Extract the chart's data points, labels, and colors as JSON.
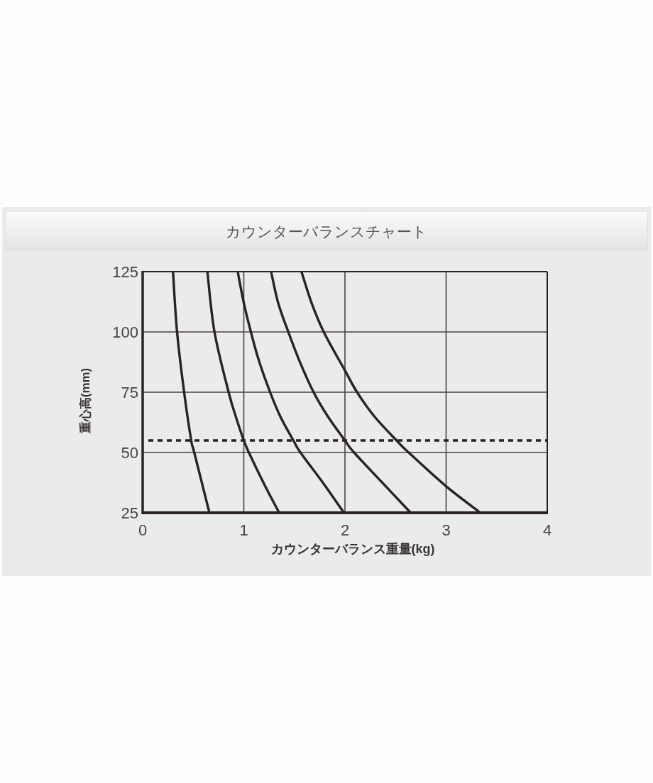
{
  "chart_data": {
    "type": "line",
    "title": "カウンターバランスチャート",
    "xlabel": "カウンターバランス重量(kg)",
    "ylabel": "重心高(mm)",
    "series": [
      {
        "color": "#2b2222",
        "x": [
          0.3,
          0.34,
          0.41,
          0.48,
          0.51,
          0.66
        ],
        "values": [
          125,
          100,
          75,
          55,
          50,
          25
        ]
      },
      {
        "color": "#2b2222",
        "x": [
          0.64,
          0.71,
          0.85,
          0.92,
          1.0,
          1.05,
          1.2,
          1.35
        ],
        "values": [
          125,
          100,
          75,
          65,
          55,
          50,
          37,
          25
        ]
      },
      {
        "color": "#2b2222",
        "x": [
          0.94,
          1.0,
          1.07,
          1.15,
          1.26,
          1.36,
          1.49,
          1.56,
          1.79,
          1.99
        ],
        "values": [
          125,
          112,
          100,
          88,
          75,
          65,
          55,
          50,
          37,
          25
        ]
      },
      {
        "color": "#2b2222",
        "x": [
          1.27,
          1.34,
          1.44,
          1.55,
          1.69,
          1.83,
          2.0,
          2.09,
          2.38,
          2.65
        ],
        "values": [
          125,
          112,
          100,
          88,
          75,
          65,
          55,
          50,
          37,
          25
        ]
      },
      {
        "color": "#2b2222",
        "x": [
          1.57,
          1.67,
          1.79,
          2.0,
          2.12,
          2.29,
          2.51,
          2.63,
          3.0,
          3.34
        ],
        "values": [
          125,
          112,
          100,
          84,
          75,
          65,
          55,
          50,
          36,
          25
        ]
      }
    ],
    "xlim": [
      0,
      4
    ],
    "ylim": [
      25,
      125
    ],
    "xticks": [
      0,
      1,
      2,
      3,
      4
    ],
    "yticks": [
      25,
      50,
      75,
      100,
      125
    ],
    "grid": true,
    "line_style": "solid",
    "ref_lines": [
      {
        "axis": "y",
        "value": 55,
        "line_style": "dashed",
        "color": "#2b2222"
      }
    ]
  }
}
